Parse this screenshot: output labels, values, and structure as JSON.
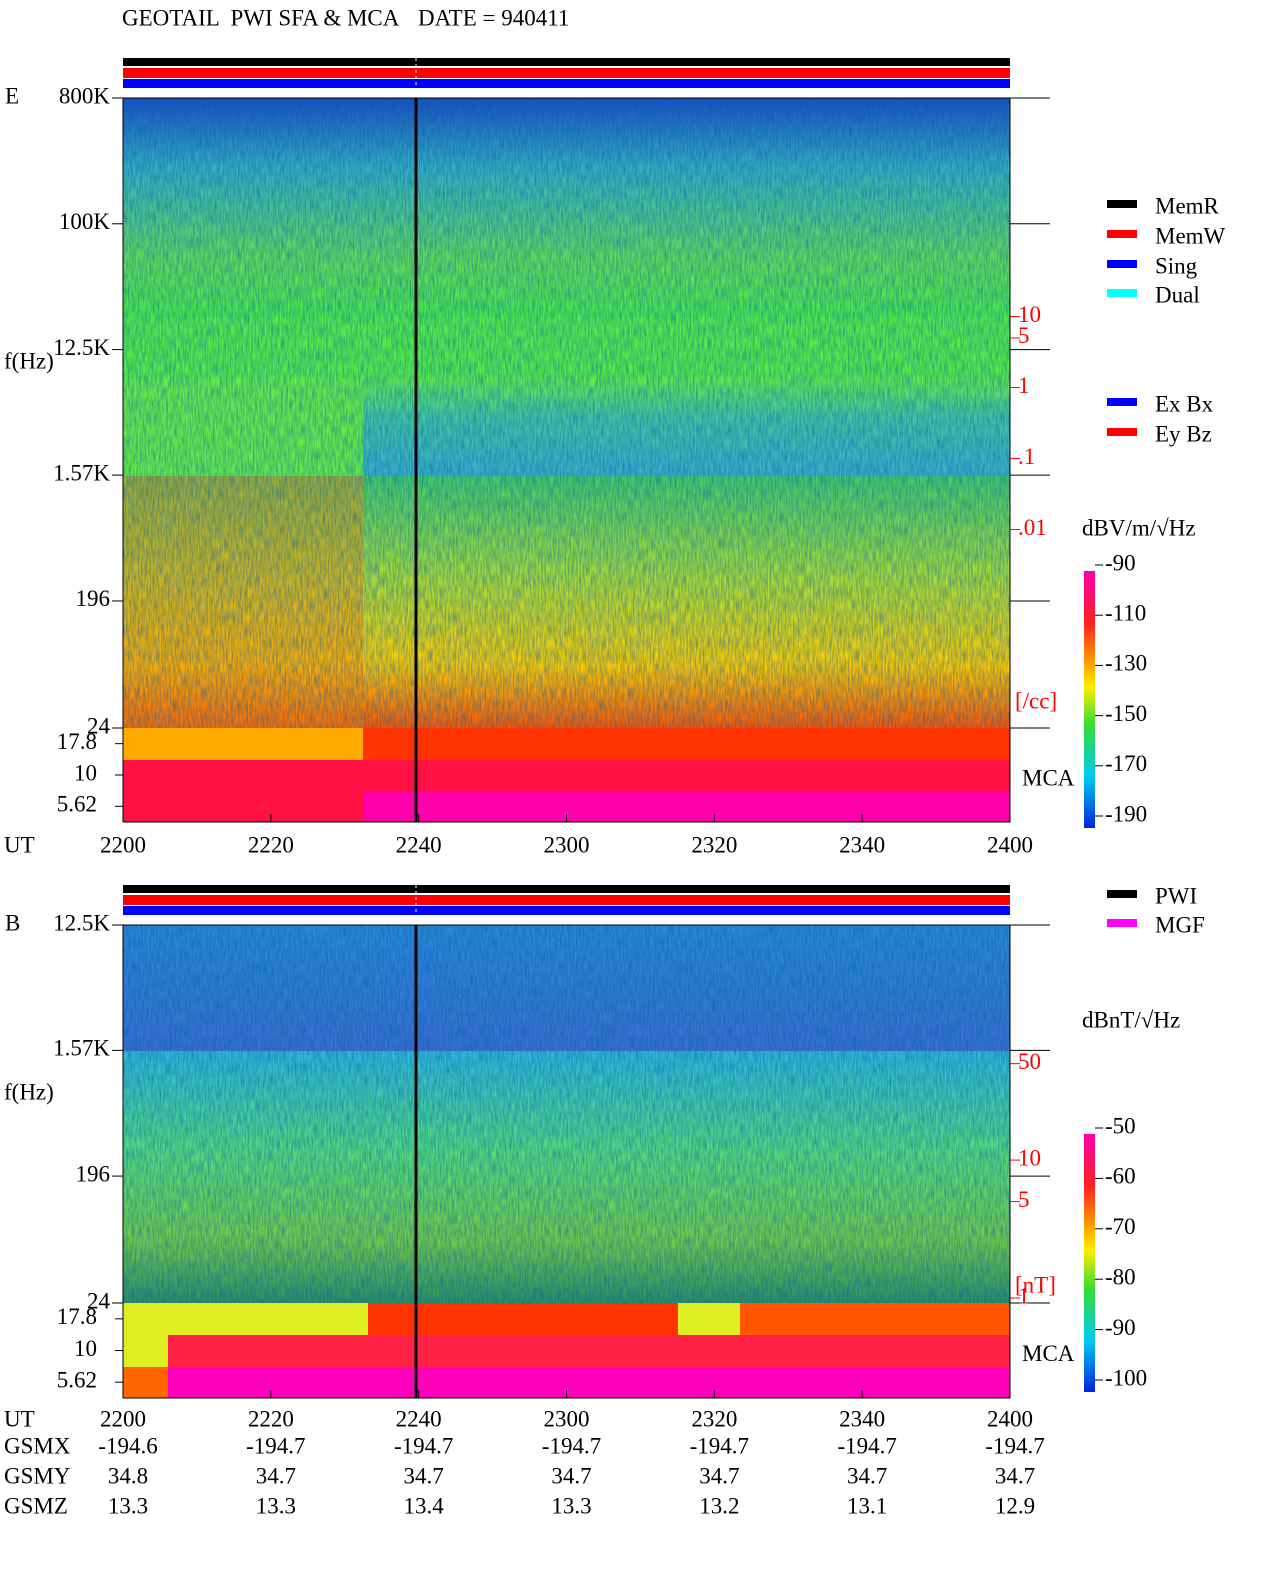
{
  "header": {
    "title": "GEOTAIL  PWI SFA & MCA",
    "date": "DATE = 940411"
  },
  "legend": {
    "status": [
      {
        "name": "MemR",
        "color": "#000000"
      },
      {
        "name": "MemW",
        "color": "#ff0000"
      },
      {
        "name": "Sing",
        "color": "#0000ff"
      },
      {
        "name": "Dual",
        "color": "#00ffff"
      }
    ],
    "components": [
      {
        "name": "Ex Bx",
        "color": "#0000ff"
      },
      {
        "name": "Ey Bz",
        "color": "#ff0000"
      }
    ],
    "sources": [
      {
        "name": "PWI",
        "color": "#000000"
      },
      {
        "name": "MGF",
        "color": "#ff00ff"
      }
    ]
  },
  "chart_data": [
    {
      "type": "spectrogram",
      "panel_label": "E",
      "y_label": "f(Hz)",
      "x_label": "UT",
      "y_scale": "log",
      "ylim": [
        24,
        800000
      ],
      "yticks": [
        {
          "value": 800000,
          "label": "800K"
        },
        {
          "value": 100000,
          "label": "100K"
        },
        {
          "value": 12500,
          "label": "12.5K"
        },
        {
          "value": 1570,
          "label": "1.57K"
        },
        196,
        24
      ],
      "mca_label": "MCA",
      "mca_channels": [
        17.8,
        10,
        5.62
      ],
      "xticks": [
        "2200",
        "2220",
        "2240",
        "2300",
        "2320",
        "2340",
        "2400"
      ],
      "y2_scale": "log",
      "y2_label": "[/cc]",
      "y2lim": [
        1.6e-05,
        12000
      ],
      "y2ticks": [
        10,
        5,
        1,
        {
          "value": 0.1,
          "label": ".1"
        },
        {
          "value": 0.01,
          "label": ".01"
        }
      ],
      "colorbar": {
        "label": "dBV/m/√Hz",
        "lim": [
          -190,
          -90
        ],
        "ticks": [
          -90,
          -110,
          -130,
          -150,
          -170,
          -190
        ]
      }
    },
    {
      "type": "spectrogram",
      "panel_label": "B",
      "y_label": "f(Hz)",
      "x_label": "UT",
      "y_scale": "log",
      "ylim": [
        24,
        12500
      ],
      "yticks": [
        {
          "value": 12500,
          "label": "12.5K"
        },
        {
          "value": 1570,
          "label": "1.57K"
        },
        196,
        24
      ],
      "mca_label": "MCA",
      "mca_channels": [
        17.8,
        10,
        5.62
      ],
      "xticks": [
        "2200",
        "2220",
        "2240",
        "2300",
        "2320",
        "2340",
        "2400"
      ],
      "y2_scale": "log",
      "y2_label": "[nT]",
      "y2lim": [
        0.92,
        506
      ],
      "y2ticks": [
        50,
        10,
        5,
        1
      ],
      "colorbar": {
        "label": "dBnT/√Hz",
        "lim": [
          -100,
          -50
        ],
        "ticks": [
          -50,
          -60,
          -70,
          -80,
          -90,
          -100
        ]
      }
    }
  ],
  "orbit": {
    "rows": [
      {
        "name": "GSMX",
        "values": [
          -194.6,
          -194.7,
          -194.7,
          -194.7,
          -194.7,
          -194.7,
          -194.7
        ]
      },
      {
        "name": "GSMY",
        "values": [
          34.8,
          34.7,
          34.7,
          34.7,
          34.7,
          34.7,
          34.7
        ]
      },
      {
        "name": "GSMZ",
        "values": [
          13.3,
          13.3,
          13.4,
          13.3,
          13.2,
          13.1,
          12.9
        ]
      }
    ]
  }
}
